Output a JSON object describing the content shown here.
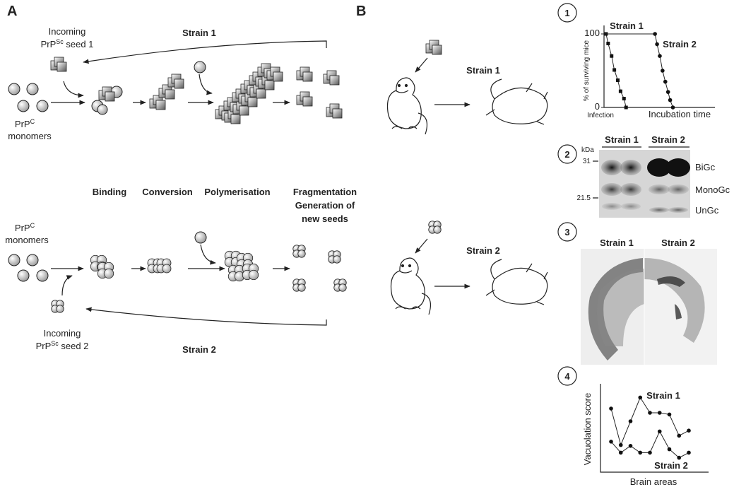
{
  "panel_a": {
    "label": "A",
    "strain1": "Strain 1",
    "strain2": "Strain 2",
    "incoming1": {
      "line1": "Incoming",
      "prp": "PrP",
      "sup": "Sc",
      "rest": " seed 1"
    },
    "incoming2": {
      "line1": "Incoming",
      "prp": "PrP",
      "sup": "Sc",
      "rest": " seed 2"
    },
    "monomers1": {
      "prp": "PrP",
      "sup": "C",
      "line2": "monomers"
    },
    "monomers2": {
      "prp": "PrP",
      "sup": "C",
      "line2": "monomers"
    },
    "steps": [
      "Binding",
      "Conversion",
      "Polymerisation"
    ],
    "fragmentation": [
      "Fragmentation",
      "Generation of",
      "new seeds"
    ]
  },
  "panel_b": {
    "label": "B",
    "strain1": "Strain 1",
    "strain2": "Strain 2"
  },
  "panel1": {
    "number": "1",
    "y_label": "% of surviving mice",
    "x_start": "Infection",
    "x_label": "Incubation time",
    "ylim": [
      0,
      100
    ],
    "yticks": [
      100,
      0
    ],
    "xlim": [
      0,
      16
    ],
    "series": [
      {
        "name": "Strain 1",
        "marker": "square",
        "x": [
          0.3,
          0.6,
          1.1,
          1.5,
          2.0,
          2.4,
          2.9,
          3.2
        ],
        "values": [
          100,
          87,
          70,
          51,
          37,
          22,
          12,
          0
        ]
      },
      {
        "name": "Strain 2",
        "marker": "circle",
        "x": [
          7.4,
          7.7,
          8.1,
          8.5,
          8.9,
          9.3,
          9.6,
          10.0
        ],
        "values": [
          100,
          86,
          70,
          50,
          35,
          21,
          10,
          0
        ]
      }
    ]
  },
  "panel2": {
    "number": "2",
    "unit": "kDa",
    "markers": [
      "31",
      "21.5"
    ],
    "lanes": [
      "Strain 1",
      "Strain 2"
    ],
    "bands": [
      "BiGc",
      "MonoGc",
      "UnGc"
    ]
  },
  "panel3": {
    "number": "3",
    "labels": [
      "Strain 1",
      "Strain 2"
    ]
  },
  "panel4": {
    "number": "4",
    "y_label": "Vacuolation score",
    "x_label": "Brain areas",
    "ylim": [
      0,
      10
    ],
    "series": [
      {
        "name": "Strain 1",
        "values": [
          7.5,
          3.2,
          6.0,
          8.8,
          7.0,
          7.0,
          6.8,
          4.3,
          4.9
        ]
      },
      {
        "name": "Strain 2",
        "values": [
          3.6,
          2.3,
          3.1,
          2.3,
          2.3,
          4.8,
          2.7,
          1.7,
          2.3
        ]
      }
    ]
  }
}
